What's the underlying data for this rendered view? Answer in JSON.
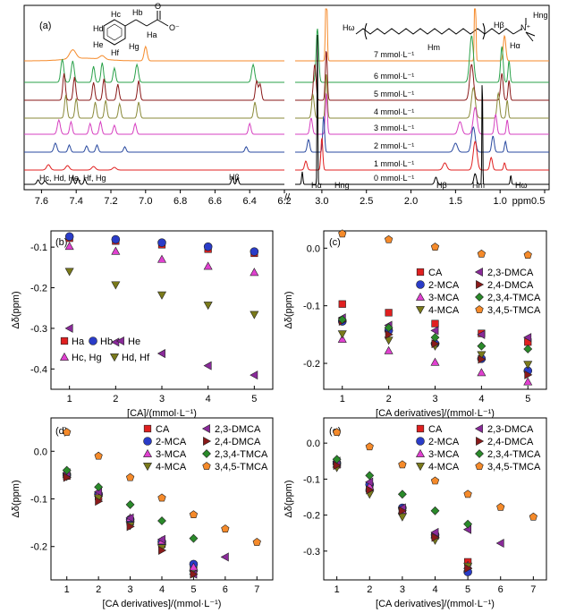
{
  "figure": {
    "panel_a_label": "(a)",
    "spectrum": {
      "left_xticks": [
        "7.6",
        "7.4",
        "7.2",
        "7.0",
        "6.8",
        "6.6",
        "6.4",
        "6.2"
      ],
      "right_xticks": [
        "3.0",
        "2.5",
        "2.0",
        "1.5",
        "1.0",
        "ppm0.5"
      ],
      "axis_break": "//",
      "concentrations": [
        "7 mmol·L⁻¹",
        "6 mmol·L⁻¹",
        "5 mmol·L⁻¹",
        "4 mmol·L⁻¹",
        "3 mmol·L⁻¹",
        "2 mmol·L⁻¹",
        "1 mmol·L⁻¹",
        "0 mmol·L⁻¹"
      ],
      "trace_colors": [
        "#f58a2a",
        "#2aa14a",
        "#8a1a1a",
        "#8a8a3a",
        "#d640c0",
        "#2a4aa0",
        "#e02020",
        "#000000"
      ],
      "cinnamate_labels": [
        "Hc",
        "Hd",
        "He",
        "Hf",
        "Hg",
        "Hb",
        "Ha",
        "O⁻",
        "O"
      ],
      "surfactant_labels": [
        "Hω",
        "Hβ",
        "Hm",
        "Hα",
        "Hng",
        "N⁺"
      ],
      "left_peak_labels": [
        "Hc, Hd, He, Hf, Hg"
      ],
      "left_peak_labels_right": [
        "Hβ"
      ],
      "right_peak_labels": [
        "Hα",
        "Hng",
        "Hβ",
        "Hm",
        "Hω"
      ]
    }
  },
  "chart_data": [
    {
      "panel": "(b)",
      "type": "scatter",
      "xlabel": "[CA]/(mmol·L⁻¹)",
      "ylabel": "Δδ(ppm)",
      "xlim": [
        0.6,
        5.4
      ],
      "ylim": [
        -0.45,
        -0.06
      ],
      "xticks": [
        1,
        2,
        3,
        4,
        5
      ],
      "yticks": [
        -0.1,
        -0.2,
        -0.3,
        -0.4
      ],
      "legend_position": "bottom-left",
      "series": [
        {
          "name": "Ha",
          "marker": "square",
          "color": "#e02020",
          "x": [
            1,
            2,
            3,
            4,
            5
          ],
          "y": [
            -0.078,
            -0.085,
            -0.094,
            -0.105,
            -0.115
          ]
        },
        {
          "name": "Hb",
          "marker": "circle",
          "color": "#2a3cc8",
          "x": [
            1,
            2,
            3,
            4,
            5
          ],
          "y": [
            -0.074,
            -0.081,
            -0.089,
            -0.099,
            -0.111
          ]
        },
        {
          "name": "He",
          "marker": "triangle-left",
          "color": "#8a2a9a",
          "x": [
            1,
            2,
            3,
            4,
            5
          ],
          "y": [
            -0.3,
            -0.334,
            -0.362,
            -0.392,
            -0.415
          ]
        },
        {
          "name": "Hc, Hg",
          "marker": "triangle-up",
          "color": "#e040d0",
          "x": [
            1,
            2,
            3,
            4,
            5
          ],
          "y": [
            -0.098,
            -0.11,
            -0.13,
            -0.147,
            -0.162
          ]
        },
        {
          "name": "Hd, Hf",
          "marker": "triangle-down",
          "color": "#7a7a1a",
          "x": [
            1,
            2,
            3,
            4,
            5
          ],
          "y": [
            -0.16,
            -0.193,
            -0.218,
            -0.243,
            -0.266
          ]
        }
      ]
    },
    {
      "panel": "(c)",
      "type": "scatter",
      "xlabel": "[CA derivatives]/(mmol·L⁻¹)",
      "ylabel": "Δδ(ppm)",
      "xlim": [
        0.6,
        5.4
      ],
      "ylim": [
        -0.245,
        0.03
      ],
      "xticks": [
        1,
        2,
        3,
        4,
        5
      ],
      "yticks": [
        0.0,
        -0.1,
        -0.2
      ],
      "legend_position": "center-right",
      "series": [
        {
          "name": "CA",
          "marker": "square",
          "color": "#e02020",
          "x": [
            1,
            2,
            3,
            4,
            5
          ],
          "y": [
            -0.097,
            -0.112,
            -0.131,
            -0.148,
            -0.163
          ]
        },
        {
          "name": "2-MCA",
          "marker": "circle",
          "color": "#2a3cc8",
          "x": [
            1,
            2,
            3,
            4,
            5
          ],
          "y": [
            -0.127,
            -0.143,
            -0.166,
            -0.192,
            -0.213
          ]
        },
        {
          "name": "3-MCA",
          "marker": "triangle-up",
          "color": "#e040d0",
          "x": [
            1,
            2,
            3,
            4,
            5
          ],
          "y": [
            -0.158,
            -0.178,
            -0.198,
            -0.216,
            -0.232
          ]
        },
        {
          "name": "4-MCA",
          "marker": "triangle-down",
          "color": "#7a7a1a",
          "x": [
            1,
            2,
            3,
            4,
            5
          ],
          "y": [
            -0.149,
            -0.16,
            -0.17,
            -0.185,
            -0.202
          ]
        },
        {
          "name": "2,3-DMCA",
          "marker": "triangle-left",
          "color": "#8a2a9a",
          "x": [
            1,
            2,
            3,
            4,
            5
          ],
          "y": [
            -0.121,
            -0.134,
            -0.143,
            -0.15,
            -0.155
          ]
        },
        {
          "name": "2,4-DMCA",
          "marker": "triangle-right",
          "color": "#8a1a1a",
          "x": [
            1,
            2,
            3,
            4,
            5
          ],
          "y": [
            -0.127,
            -0.15,
            -0.166,
            -0.193,
            -0.22
          ]
        },
        {
          "name": "2,3,4-TMCA",
          "marker": "diamond",
          "color": "#2a8a2a",
          "x": [
            1,
            2,
            3,
            4,
            5
          ],
          "y": [
            -0.124,
            -0.138,
            -0.155,
            -0.17,
            -0.175
          ]
        },
        {
          "name": "3,4,5-TMCA",
          "marker": "pentagon",
          "color": "#f58a2a",
          "x": [
            1,
            2,
            3,
            4,
            5
          ],
          "y": [
            0.025,
            0.015,
            0.002,
            -0.01,
            -0.012
          ]
        }
      ]
    },
    {
      "panel": "(d)",
      "type": "scatter",
      "xlabel": "[CA derivatives]/(mmol·L⁻¹)",
      "ylabel": "Δδ(ppm)",
      "xlim": [
        0.5,
        7.5
      ],
      "ylim": [
        -0.27,
        0.07
      ],
      "xticks": [
        1,
        2,
        3,
        4,
        5,
        6,
        7
      ],
      "yticks": [
        0.0,
        -0.1,
        -0.2
      ],
      "legend_position": "top-right",
      "series": [
        {
          "name": "CA",
          "marker": "square",
          "color": "#e02020",
          "x": [
            1,
            2,
            3,
            4,
            5
          ],
          "y": [
            -0.052,
            -0.095,
            -0.148,
            -0.195,
            -0.24
          ]
        },
        {
          "name": "2-MCA",
          "marker": "circle",
          "color": "#2a3cc8",
          "x": [
            1,
            2,
            3,
            4,
            5
          ],
          "y": [
            -0.05,
            -0.09,
            -0.143,
            -0.19,
            -0.237
          ]
        },
        {
          "name": "3-MCA",
          "marker": "triangle-up",
          "color": "#e040d0",
          "x": [
            1,
            2,
            3,
            4,
            5
          ],
          "y": [
            -0.048,
            -0.088,
            -0.14,
            -0.188,
            -0.243
          ]
        },
        {
          "name": "4-MCA",
          "marker": "triangle-down",
          "color": "#7a7a1a",
          "x": [
            1,
            2,
            3,
            4,
            5
          ],
          "y": [
            -0.053,
            -0.098,
            -0.156,
            -0.203,
            -0.258
          ]
        },
        {
          "name": "2,3-DMCA",
          "marker": "triangle-left",
          "color": "#8a2a9a",
          "x": [
            1,
            2,
            3,
            4,
            5,
            6
          ],
          "y": [
            -0.045,
            -0.085,
            -0.14,
            -0.185,
            -0.258,
            -0.222
          ]
        },
        {
          "name": "2,4-DMCA",
          "marker": "triangle-right",
          "color": "#8a1a1a",
          "x": [
            1,
            2,
            3,
            4,
            5
          ],
          "y": [
            -0.055,
            -0.105,
            -0.158,
            -0.208,
            -0.258
          ]
        },
        {
          "name": "2,3,4-TMCA",
          "marker": "diamond",
          "color": "#2a8a2a",
          "x": [
            1,
            2,
            3,
            4,
            5
          ],
          "y": [
            -0.04,
            -0.075,
            -0.112,
            -0.146,
            -0.183
          ]
        },
        {
          "name": "3,4,5-TMCA",
          "marker": "pentagon",
          "color": "#f58a2a",
          "x": [
            1,
            2,
            3,
            4,
            5,
            6,
            7
          ],
          "y": [
            0.04,
            -0.01,
            -0.055,
            -0.098,
            -0.133,
            -0.163,
            -0.191
          ]
        }
      ]
    },
    {
      "panel": "(e)",
      "type": "scatter",
      "xlabel": "[CA derivatives]/(mmol·L⁻¹)",
      "ylabel": "Δδ(ppm)",
      "xlim": [
        0.6,
        7.4
      ],
      "ylim": [
        -0.38,
        0.07
      ],
      "xticks": [
        1,
        2,
        3,
        4,
        5,
        6,
        7
      ],
      "yticks": [
        0.0,
        -0.1,
        -0.2,
        -0.3
      ],
      "legend_position": "top-right",
      "series": [
        {
          "name": "CA",
          "marker": "square",
          "color": "#e02020",
          "x": [
            1,
            2,
            3,
            4,
            5
          ],
          "y": [
            -0.06,
            -0.125,
            -0.185,
            -0.258,
            -0.33
          ]
        },
        {
          "name": "2-MCA",
          "marker": "circle",
          "color": "#2a3cc8",
          "x": [
            1,
            2,
            3,
            4,
            5
          ],
          "y": [
            -0.055,
            -0.115,
            -0.18,
            -0.255,
            -0.358
          ]
        },
        {
          "name": "3-MCA",
          "marker": "triangle-up",
          "color": "#e040d0",
          "x": [
            1,
            2,
            3,
            4,
            5
          ],
          "y": [
            -0.058,
            -0.12,
            -0.186,
            -0.255,
            -0.34
          ]
        },
        {
          "name": "4-MCA",
          "marker": "triangle-down",
          "color": "#7a7a1a",
          "x": [
            1,
            2,
            3,
            4,
            5
          ],
          "y": [
            -0.068,
            -0.142,
            -0.205,
            -0.27,
            -0.342
          ]
        },
        {
          "name": "2,3-DMCA",
          "marker": "triangle-left",
          "color": "#8a2a9a",
          "x": [
            1,
            2,
            3,
            4,
            5,
            6
          ],
          "y": [
            -0.05,
            -0.108,
            -0.18,
            -0.248,
            -0.24,
            -0.278
          ]
        },
        {
          "name": "2,4-DMCA",
          "marker": "triangle-right",
          "color": "#8a1a1a",
          "x": [
            1,
            2,
            3,
            4,
            5
          ],
          "y": [
            -0.062,
            -0.13,
            -0.188,
            -0.262,
            -0.348
          ]
        },
        {
          "name": "2,3,4-TMCA",
          "marker": "diamond",
          "color": "#2a8a2a",
          "x": [
            1,
            2,
            3,
            4,
            5
          ],
          "y": [
            -0.045,
            -0.09,
            -0.142,
            -0.188,
            -0.225
          ]
        },
        {
          "name": "3,4,5-TMCA",
          "marker": "pentagon",
          "color": "#f58a2a",
          "x": [
            1,
            2,
            3,
            4,
            5,
            6,
            7
          ],
          "y": [
            0.03,
            -0.01,
            -0.06,
            -0.105,
            -0.142,
            -0.178,
            -0.205
          ]
        }
      ]
    }
  ]
}
